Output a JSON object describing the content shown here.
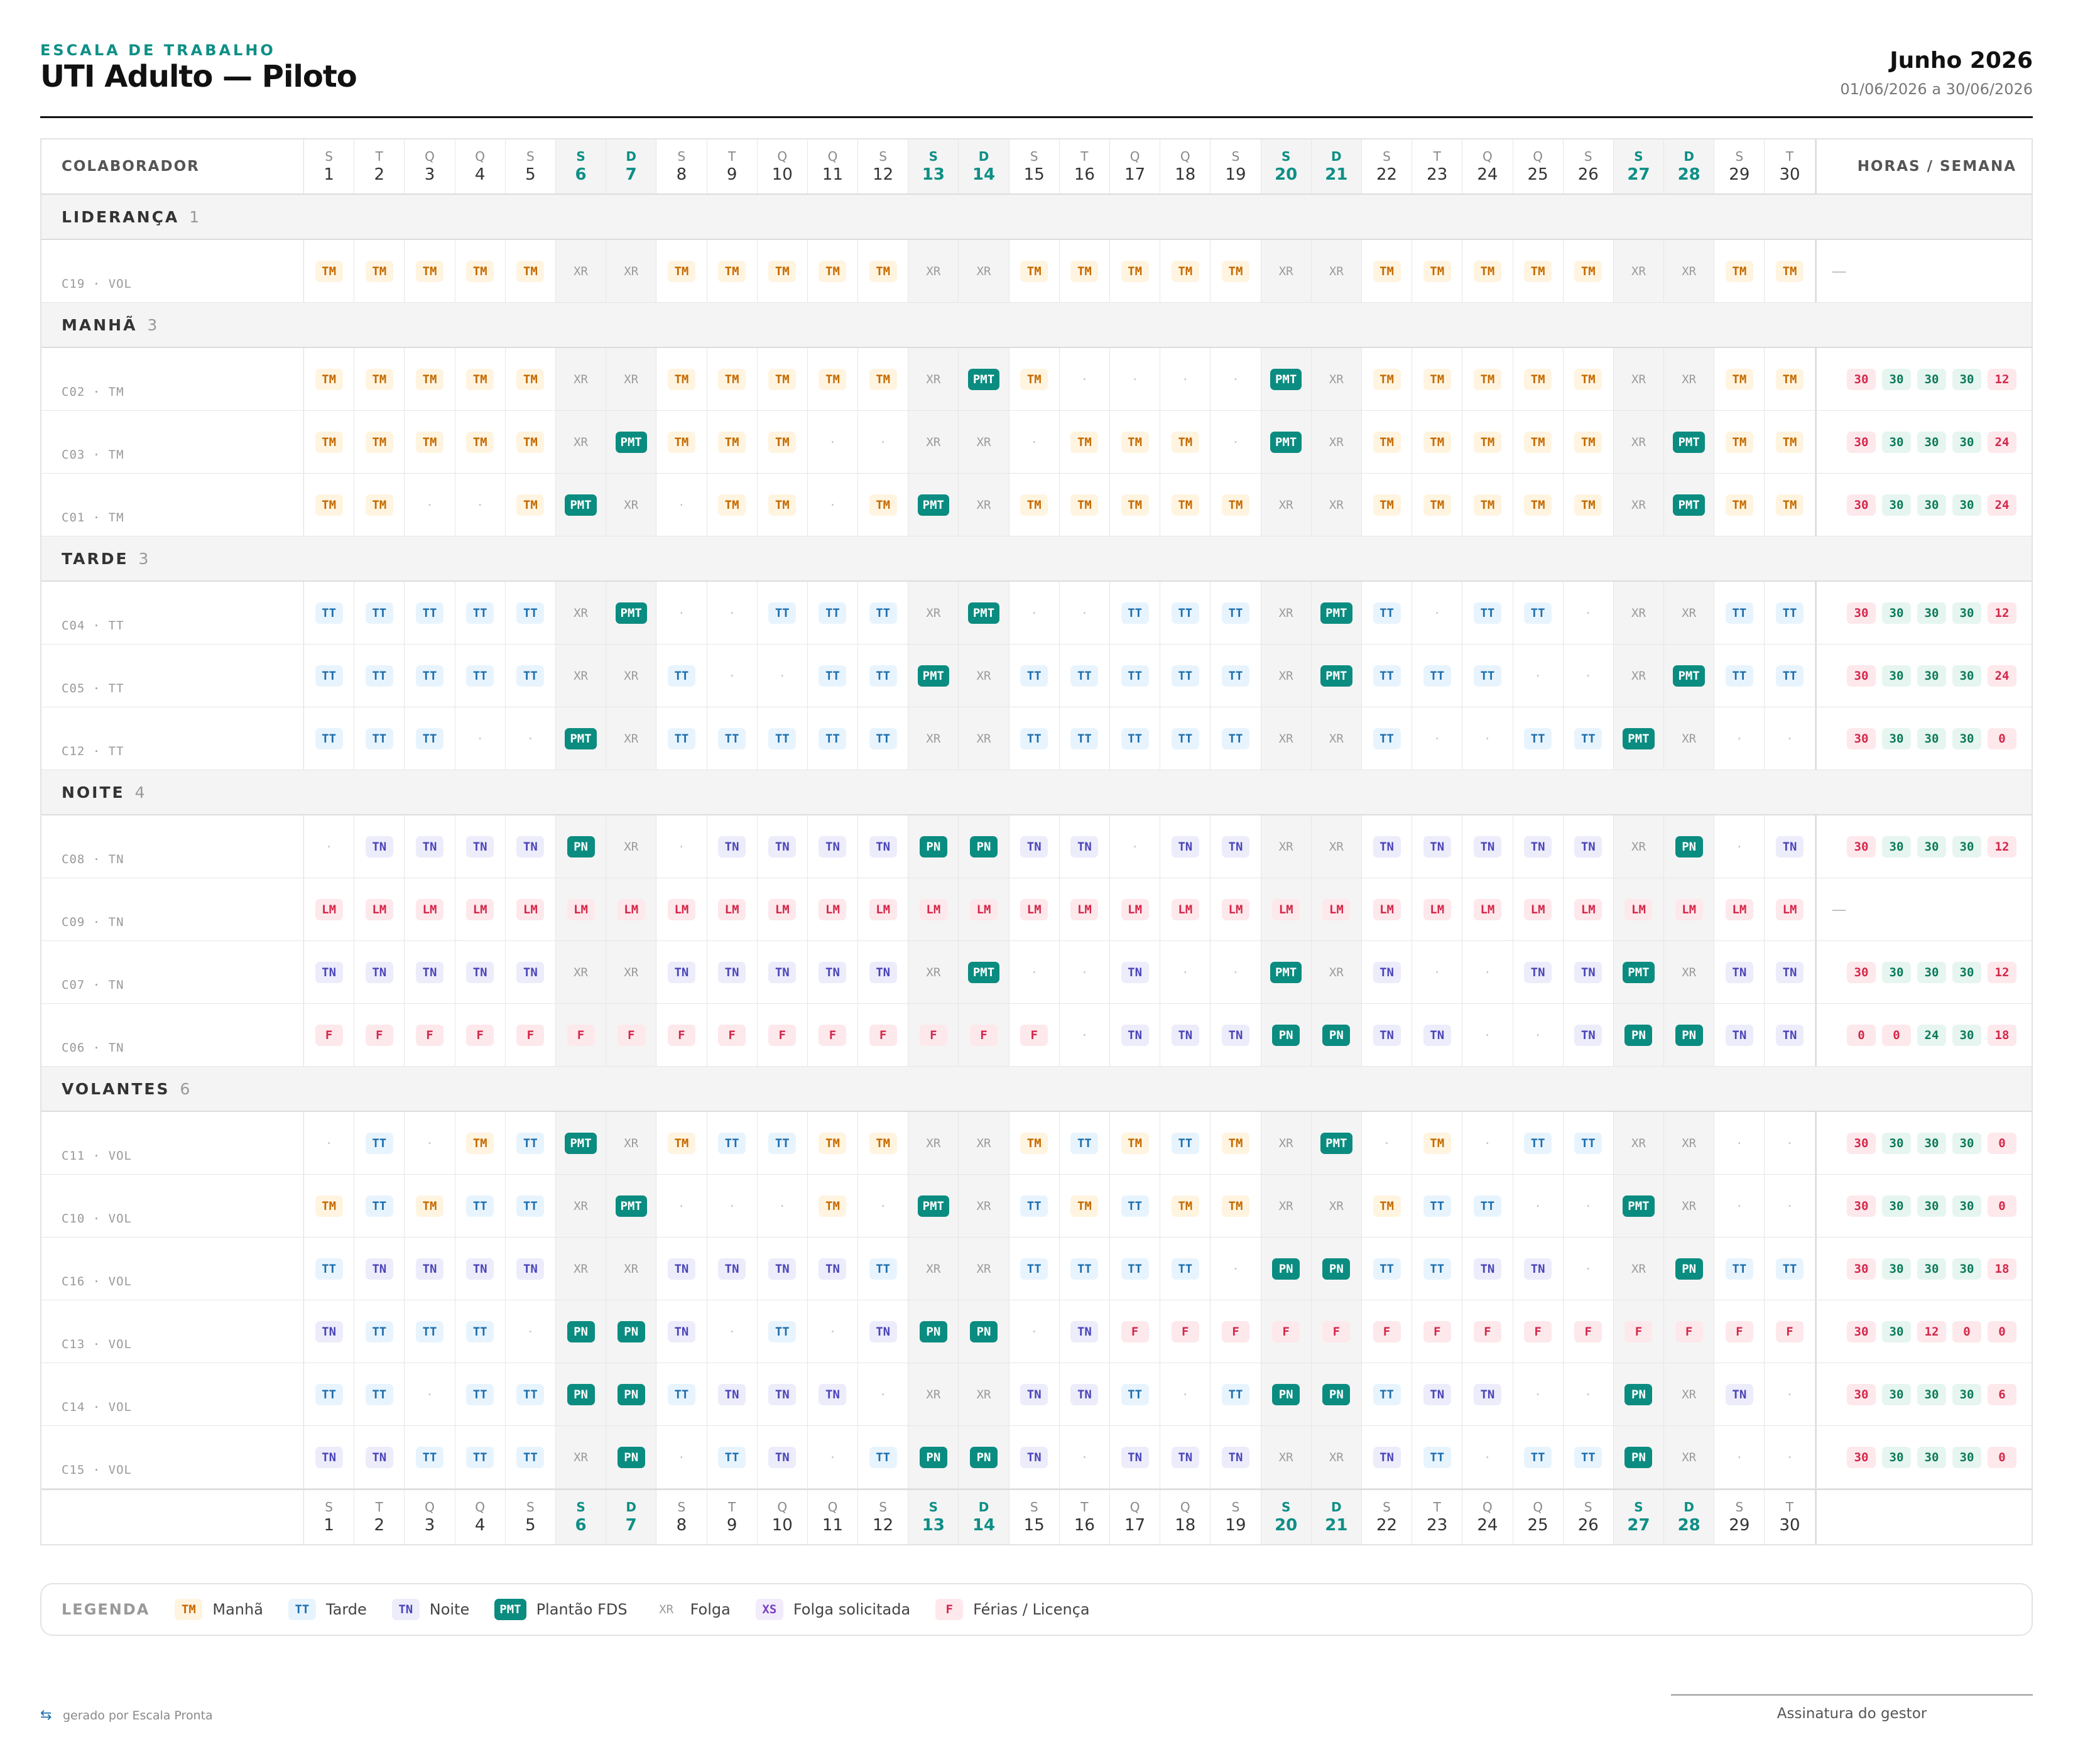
{
  "header": {
    "eyebrow": "ESCALA DE TRABALHO",
    "title": "UTI Adulto — Piloto",
    "month": "Junho 2026",
    "range": "01/06/2026 a 30/06/2026"
  },
  "columns": {
    "employee": "COLABORADOR",
    "hours": "HORAS / SEMANA"
  },
  "days": [
    {
      "wd": "S",
      "d": "1",
      "weekend": false
    },
    {
      "wd": "T",
      "d": "2",
      "weekend": false
    },
    {
      "wd": "Q",
      "d": "3",
      "weekend": false
    },
    {
      "wd": "Q",
      "d": "4",
      "weekend": false
    },
    {
      "wd": "S",
      "d": "5",
      "weekend": false
    },
    {
      "wd": "S",
      "d": "6",
      "weekend": true
    },
    {
      "wd": "D",
      "d": "7",
      "weekend": true
    },
    {
      "wd": "S",
      "d": "8",
      "weekend": false
    },
    {
      "wd": "T",
      "d": "9",
      "weekend": false
    },
    {
      "wd": "Q",
      "d": "10",
      "weekend": false
    },
    {
      "wd": "Q",
      "d": "11",
      "weekend": false
    },
    {
      "wd": "S",
      "d": "12",
      "weekend": false
    },
    {
      "wd": "S",
      "d": "13",
      "weekend": true
    },
    {
      "wd": "D",
      "d": "14",
      "weekend": true
    },
    {
      "wd": "S",
      "d": "15",
      "weekend": false
    },
    {
      "wd": "T",
      "d": "16",
      "weekend": false
    },
    {
      "wd": "Q",
      "d": "17",
      "weekend": false
    },
    {
      "wd": "Q",
      "d": "18",
      "weekend": false
    },
    {
      "wd": "S",
      "d": "19",
      "weekend": false
    },
    {
      "wd": "S",
      "d": "20",
      "weekend": true
    },
    {
      "wd": "D",
      "d": "21",
      "weekend": true
    },
    {
      "wd": "S",
      "d": "22",
      "weekend": false
    },
    {
      "wd": "T",
      "d": "23",
      "weekend": false
    },
    {
      "wd": "Q",
      "d": "24",
      "weekend": false
    },
    {
      "wd": "Q",
      "d": "25",
      "weekend": false
    },
    {
      "wd": "S",
      "d": "26",
      "weekend": false
    },
    {
      "wd": "S",
      "d": "27",
      "weekend": true
    },
    {
      "wd": "D",
      "d": "28",
      "weekend": true
    },
    {
      "wd": "S",
      "d": "29",
      "weekend": false
    },
    {
      "wd": "T",
      "d": "30",
      "weekend": false
    }
  ],
  "groups": [
    {
      "name": "LIDERANÇA",
      "count": "1",
      "employees": [
        {
          "label": "C19 · VOL",
          "cells": [
            "TM",
            "TM",
            "TM",
            "TM",
            "TM",
            "XR",
            "XR",
            "TM",
            "TM",
            "TM",
            "TM",
            "TM",
            "XR",
            "XR",
            "TM",
            "TM",
            "TM",
            "TM",
            "TM",
            "XR",
            "XR",
            "TM",
            "TM",
            "TM",
            "TM",
            "TM",
            "XR",
            "XR",
            "TM",
            "TM"
          ],
          "hours": []
        }
      ]
    },
    {
      "name": "MANHÃ",
      "count": "3",
      "employees": [
        {
          "label": "C02 · TM",
          "cells": [
            "TM",
            "TM",
            "TM",
            "TM",
            "TM",
            "XR",
            "XR",
            "TM",
            "TM",
            "TM",
            "TM",
            "TM",
            "XR",
            "PMT",
            "TM",
            "·",
            "·",
            "·",
            "·",
            "PMT",
            "XR",
            "TM",
            "TM",
            "TM",
            "TM",
            "TM",
            "XR",
            "XR",
            "TM",
            "TM"
          ],
          "hours": [
            "30",
            "30",
            "30",
            "30",
            "12"
          ]
        },
        {
          "label": "C03 · TM",
          "cells": [
            "TM",
            "TM",
            "TM",
            "TM",
            "TM",
            "XR",
            "PMT",
            "TM",
            "TM",
            "TM",
            "·",
            "·",
            "XR",
            "XR",
            "·",
            "TM",
            "TM",
            "TM",
            "·",
            "PMT",
            "XR",
            "TM",
            "TM",
            "TM",
            "TM",
            "TM",
            "XR",
            "PMT",
            "TM",
            "TM"
          ],
          "hours": [
            "30",
            "30",
            "30",
            "30",
            "24"
          ]
        },
        {
          "label": "C01 · TM",
          "cells": [
            "TM",
            "TM",
            "·",
            "·",
            "TM",
            "PMT",
            "XR",
            "·",
            "TM",
            "TM",
            "·",
            "TM",
            "PMT",
            "XR",
            "TM",
            "TM",
            "TM",
            "TM",
            "TM",
            "XR",
            "XR",
            "TM",
            "TM",
            "TM",
            "TM",
            "TM",
            "XR",
            "PMT",
            "TM",
            "TM"
          ],
          "hours": [
            "30",
            "30",
            "30",
            "30",
            "24"
          ]
        }
      ]
    },
    {
      "name": "TARDE",
      "count": "3",
      "employees": [
        {
          "label": "C04 · TT",
          "cells": [
            "TT",
            "TT",
            "TT",
            "TT",
            "TT",
            "XR",
            "PMT",
            "·",
            "·",
            "TT",
            "TT",
            "TT",
            "XR",
            "PMT",
            "·",
            "·",
            "TT",
            "TT",
            "TT",
            "XR",
            "PMT",
            "TT",
            "·",
            "TT",
            "TT",
            "·",
            "XR",
            "XR",
            "TT",
            "TT"
          ],
          "hours": [
            "30",
            "30",
            "30",
            "30",
            "12"
          ]
        },
        {
          "label": "C05 · TT",
          "cells": [
            "TT",
            "TT",
            "TT",
            "TT",
            "TT",
            "XR",
            "XR",
            "TT",
            "·",
            "·",
            "TT",
            "TT",
            "PMT",
            "XR",
            "TT",
            "TT",
            "TT",
            "TT",
            "TT",
            "XR",
            "PMT",
            "TT",
            "TT",
            "TT",
            "·",
            "·",
            "XR",
            "PMT",
            "TT",
            "TT"
          ],
          "hours": [
            "30",
            "30",
            "30",
            "30",
            "24"
          ]
        },
        {
          "label": "C12 · TT",
          "cells": [
            "TT",
            "TT",
            "TT",
            "·",
            "·",
            "PMT",
            "XR",
            "TT",
            "TT",
            "TT",
            "TT",
            "TT",
            "XR",
            "XR",
            "TT",
            "TT",
            "TT",
            "TT",
            "TT",
            "XR",
            "XR",
            "TT",
            "·",
            "·",
            "TT",
            "TT",
            "PMT",
            "XR",
            "·",
            "·"
          ],
          "hours": [
            "30",
            "30",
            "30",
            "30",
            "0"
          ]
        }
      ]
    },
    {
      "name": "NOITE",
      "count": "4",
      "employees": [
        {
          "label": "C08 · TN",
          "cells": [
            "·",
            "TN",
            "TN",
            "TN",
            "TN",
            "PN",
            "XR",
            "·",
            "TN",
            "TN",
            "TN",
            "TN",
            "PN",
            "PN",
            "TN",
            "TN",
            "·",
            "TN",
            "TN",
            "XR",
            "XR",
            "TN",
            "TN",
            "TN",
            "TN",
            "TN",
            "XR",
            "PN",
            "·",
            "TN"
          ],
          "hours": [
            "30",
            "30",
            "30",
            "30",
            "12"
          ]
        },
        {
          "label": "C09 · TN",
          "cells": [
            "LM",
            "LM",
            "LM",
            "LM",
            "LM",
            "LM",
            "LM",
            "LM",
            "LM",
            "LM",
            "LM",
            "LM",
            "LM",
            "LM",
            "LM",
            "LM",
            "LM",
            "LM",
            "LM",
            "LM",
            "LM",
            "LM",
            "LM",
            "LM",
            "LM",
            "LM",
            "LM",
            "LM",
            "LM",
            "LM"
          ],
          "hours": []
        },
        {
          "label": "C07 · TN",
          "cells": [
            "TN",
            "TN",
            "TN",
            "TN",
            "TN",
            "XR",
            "XR",
            "TN",
            "TN",
            "TN",
            "TN",
            "TN",
            "XR",
            "PMT",
            "·",
            "·",
            "TN",
            "·",
            "·",
            "PMT",
            "XR",
            "TN",
            "·",
            "·",
            "TN",
            "TN",
            "PMT",
            "XR",
            "TN",
            "TN"
          ],
          "hours": [
            "30",
            "30",
            "30",
            "30",
            "12"
          ]
        },
        {
          "label": "C06 · TN",
          "cells": [
            "F",
            "F",
            "F",
            "F",
            "F",
            "F",
            "F",
            "F",
            "F",
            "F",
            "F",
            "F",
            "F",
            "F",
            "F",
            "·",
            "TN",
            "TN",
            "TN",
            "PN",
            "PN",
            "TN",
            "TN",
            "·",
            "·",
            "TN",
            "PN",
            "PN",
            "TN",
            "TN"
          ],
          "hours": [
            "0",
            "0",
            "24",
            "30",
            "18"
          ]
        }
      ]
    },
    {
      "name": "VOLANTES",
      "count": "6",
      "employees": [
        {
          "label": "C11 · VOL",
          "cells": [
            "·",
            "TT",
            "·",
            "TM",
            "TT",
            "PMT",
            "XR",
            "TM",
            "TT",
            "TT",
            "TM",
            "TM",
            "XR",
            "XR",
            "TM",
            "TT",
            "TM",
            "TT",
            "TM",
            "XR",
            "PMT",
            "·",
            "TM",
            "·",
            "TT",
            "TT",
            "XR",
            "XR",
            "·",
            "·"
          ],
          "hours": [
            "30",
            "30",
            "30",
            "30",
            "0"
          ]
        },
        {
          "label": "C10 · VOL",
          "cells": [
            "TM",
            "TT",
            "TM",
            "TT",
            "TT",
            "XR",
            "PMT",
            "·",
            "·",
            "·",
            "TM",
            "·",
            "PMT",
            "XR",
            "TT",
            "TM",
            "TT",
            "TM",
            "TM",
            "XR",
            "XR",
            "TM",
            "TT",
            "TT",
            "·",
            "·",
            "PMT",
            "XR",
            "·",
            "·"
          ],
          "hours": [
            "30",
            "30",
            "30",
            "30",
            "0"
          ]
        },
        {
          "label": "C16 · VOL",
          "cells": [
            "TT",
            "TN",
            "TN",
            "TN",
            "TN",
            "XR",
            "XR",
            "TN",
            "TN",
            "TN",
            "TN",
            "TT",
            "XR",
            "XR",
            "TT",
            "TT",
            "TT",
            "TT",
            "·",
            "PN",
            "PN",
            "TT",
            "TT",
            "TN",
            "TN",
            "·",
            "XR",
            "PN",
            "TT",
            "TT"
          ],
          "hours": [
            "30",
            "30",
            "30",
            "30",
            "18"
          ]
        },
        {
          "label": "C13 · VOL",
          "cells": [
            "TN",
            "TT",
            "TT",
            "TT",
            "·",
            "PN",
            "PN",
            "TN",
            "·",
            "TT",
            "·",
            "TN",
            "PN",
            "PN",
            "·",
            "TN",
            "F",
            "F",
            "F",
            "F",
            "F",
            "F",
            "F",
            "F",
            "F",
            "F",
            "F",
            "F",
            "F",
            "F"
          ],
          "hours": [
            "30",
            "30",
            "12",
            "0",
            "0"
          ]
        },
        {
          "label": "C14 · VOL",
          "cells": [
            "TT",
            "TT",
            "·",
            "TT",
            "TT",
            "PN",
            "PN",
            "TT",
            "TN",
            "TN",
            "TN",
            "·",
            "XR",
            "XR",
            "TN",
            "TN",
            "TT",
            "·",
            "TT",
            "PN",
            "PN",
            "TT",
            "TN",
            "TN",
            "·",
            "·",
            "PN",
            "XR",
            "TN",
            "·"
          ],
          "hours": [
            "30",
            "30",
            "30",
            "30",
            "6"
          ]
        },
        {
          "label": "C15 · VOL",
          "cells": [
            "TN",
            "TN",
            "TT",
            "TT",
            "TT",
            "XR",
            "PN",
            "·",
            "TT",
            "TN",
            "·",
            "TT",
            "PN",
            "PN",
            "TN",
            "·",
            "TN",
            "TN",
            "TN",
            "XR",
            "XR",
            "TN",
            "TT",
            "·",
            "TT",
            "TT",
            "PN",
            "XR",
            "·",
            "·"
          ],
          "hours": [
            "30",
            "30",
            "30",
            "30",
            "0"
          ]
        }
      ]
    }
  ],
  "legend": {
    "title": "LEGENDA",
    "items": [
      {
        "code": "TM",
        "label": "Manhã"
      },
      {
        "code": "TT",
        "label": "Tarde"
      },
      {
        "code": "TN",
        "label": "Noite"
      },
      {
        "code": "PMT",
        "label": "Plantão FDS"
      },
      {
        "code": "XR",
        "label": "Folga"
      },
      {
        "code": "XS",
        "label": "Folga solicitada"
      },
      {
        "code": "F",
        "label": "Férias / Licença"
      }
    ]
  },
  "footer": {
    "brand": "gerado por Escala Pronta",
    "signature": "Assinatura do gestor",
    "empty_hours": "—"
  },
  "colors": {
    "accent": "#0e8f86",
    "pmt": "#0b8c80",
    "hours_red": "#d4274a",
    "hours_green": "#0b7a5a"
  }
}
